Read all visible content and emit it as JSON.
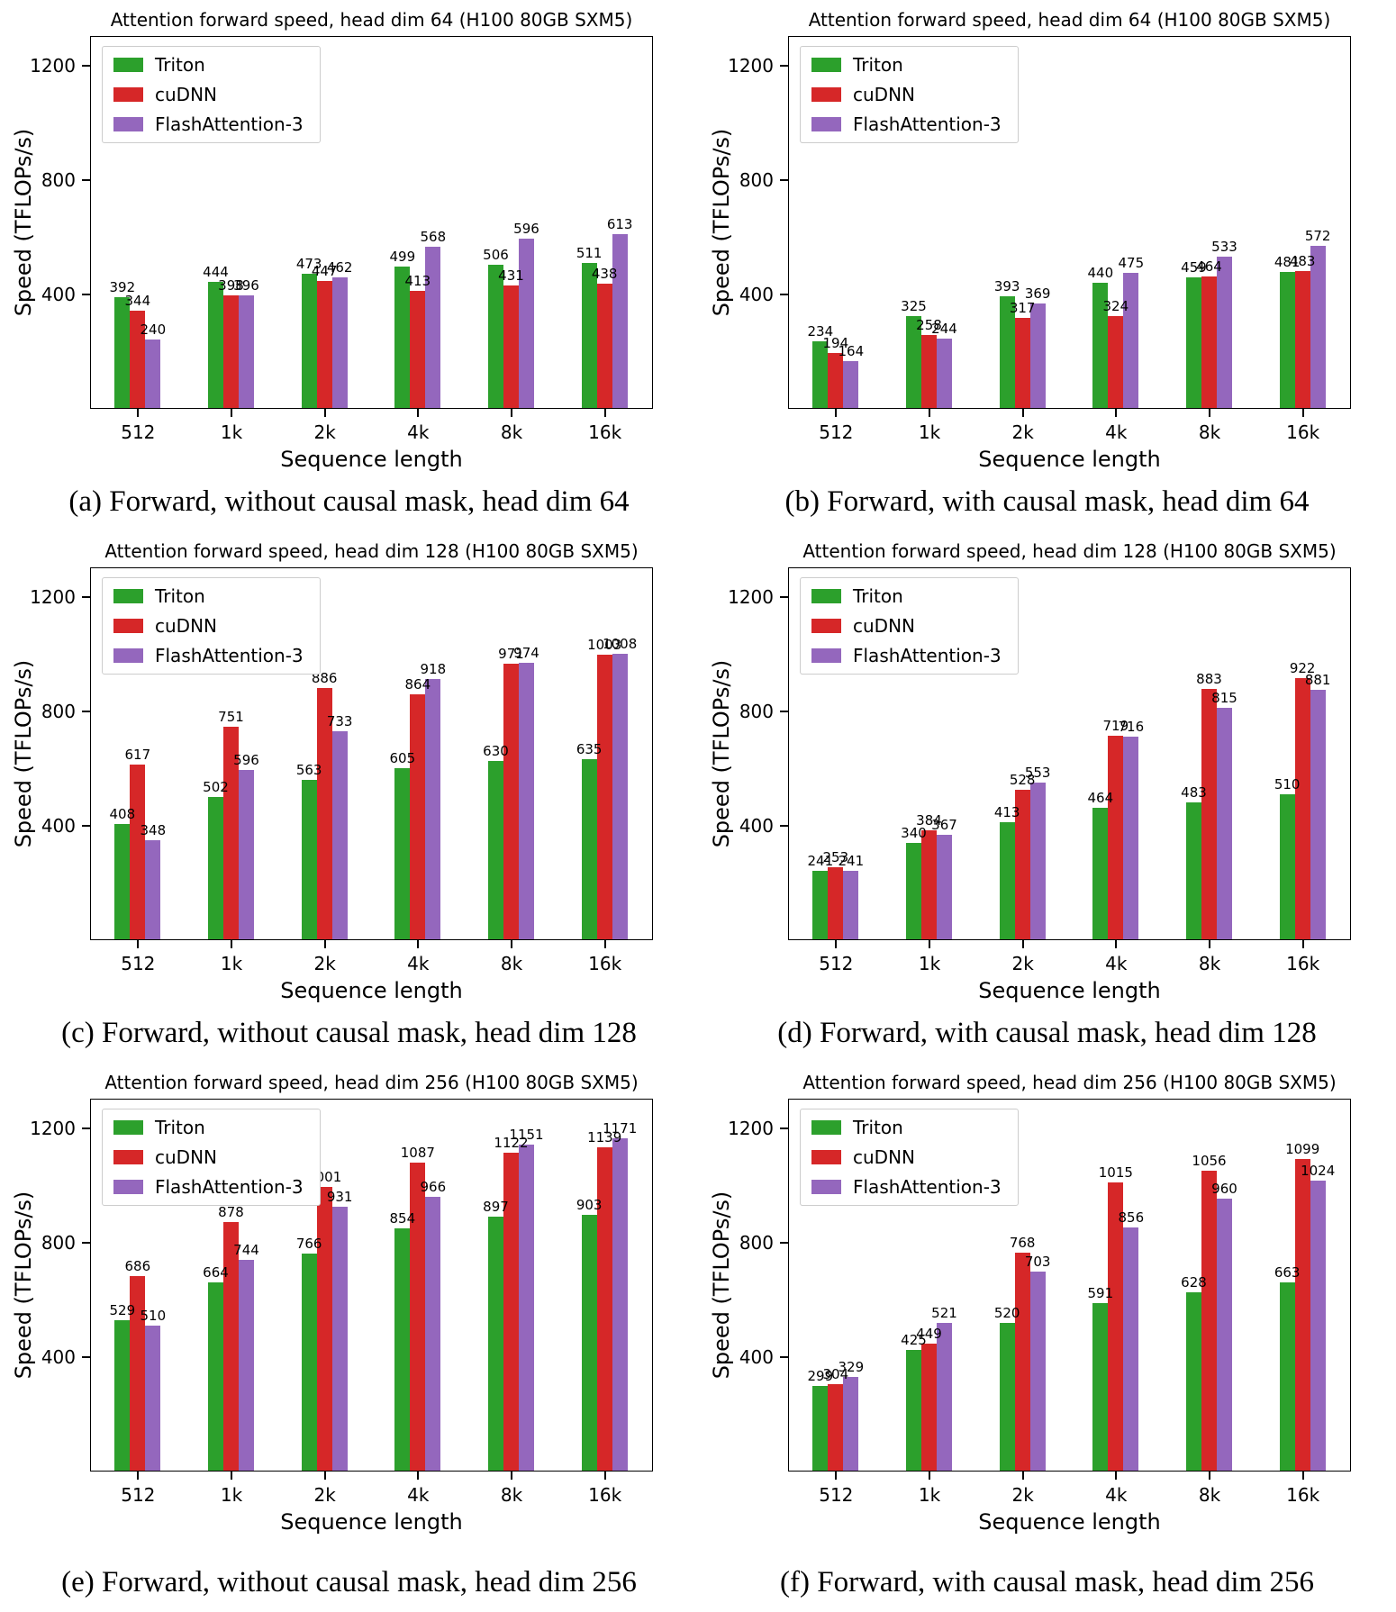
{
  "page": {
    "background": "#ffffff"
  },
  "axis": {
    "xlabel": "Sequence length",
    "ylabel": "Speed (TFLOPs/s)"
  },
  "colors": {
    "triton": "#2ca02c",
    "cudnn": "#d62728",
    "flashattention3": "#9467bd"
  },
  "chart_data": [
    {
      "id": "a",
      "type": "bar",
      "title": "Attention forward speed, head dim 64 (H100 80GB SXM5)",
      "caption": "(a) Forward, without causal mask, head dim 64",
      "xlabel": "Sequence length",
      "ylabel": "Speed (TFLOPs/s)",
      "categories": [
        "512",
        "1k",
        "2k",
        "4k",
        "8k",
        "16k"
      ],
      "yticks": [
        400,
        800,
        1200
      ],
      "ylim": [
        0,
        1305
      ],
      "grid": false,
      "legend_position": "upper left",
      "series": [
        {
          "name": "Triton",
          "color": "#2ca02c",
          "values": [
            392,
            444,
            473,
            499,
            506,
            511
          ]
        },
        {
          "name": "cuDNN",
          "color": "#d62728",
          "values": [
            344,
            398,
            447,
            413,
            431,
            438
          ]
        },
        {
          "name": "FlashAttention-3",
          "color": "#9467bd",
          "values": [
            240,
            396,
            462,
            568,
            596,
            613
          ]
        }
      ]
    },
    {
      "id": "b",
      "type": "bar",
      "title": "Attention forward speed, head dim 64 (H100 80GB SXM5)",
      "caption": "(b) Forward, with causal mask, head dim 64",
      "xlabel": "Sequence length",
      "ylabel": "Speed (TFLOPs/s)",
      "categories": [
        "512",
        "1k",
        "2k",
        "4k",
        "8k",
        "16k"
      ],
      "yticks": [
        400,
        800,
        1200
      ],
      "ylim": [
        0,
        1305
      ],
      "grid": false,
      "legend_position": "upper left",
      "series": [
        {
          "name": "Triton",
          "color": "#2ca02c",
          "values": [
            234,
            325,
            393,
            440,
            459,
            481
          ]
        },
        {
          "name": "cuDNN",
          "color": "#d62728",
          "values": [
            194,
            258,
            317,
            324,
            464,
            483
          ]
        },
        {
          "name": "FlashAttention-3",
          "color": "#9467bd",
          "values": [
            164,
            244,
            369,
            475,
            533,
            572
          ]
        }
      ]
    },
    {
      "id": "c",
      "type": "bar",
      "title": "Attention forward speed, head dim 128 (H100 80GB SXM5)",
      "caption": "(c) Forward, without causal mask, head dim 128",
      "xlabel": "Sequence length",
      "ylabel": "Speed (TFLOPs/s)",
      "categories": [
        "512",
        "1k",
        "2k",
        "4k",
        "8k",
        "16k"
      ],
      "yticks": [
        400,
        800,
        1200
      ],
      "ylim": [
        0,
        1305
      ],
      "grid": false,
      "legend_position": "upper left",
      "series": [
        {
          "name": "Triton",
          "color": "#2ca02c",
          "values": [
            408,
            502,
            563,
            605,
            630,
            635
          ]
        },
        {
          "name": "cuDNN",
          "color": "#d62728",
          "values": [
            617,
            751,
            886,
            864,
            971,
            1003
          ]
        },
        {
          "name": "FlashAttention-3",
          "color": "#9467bd",
          "values": [
            348,
            596,
            733,
            918,
            974,
            1008
          ]
        }
      ]
    },
    {
      "id": "d",
      "type": "bar",
      "title": "Attention forward speed, head dim 128 (H100 80GB SXM5)",
      "caption": "(d) Forward, with causal mask, head dim 128",
      "xlabel": "Sequence length",
      "ylabel": "Speed (TFLOPs/s)",
      "categories": [
        "512",
        "1k",
        "2k",
        "4k",
        "8k",
        "16k"
      ],
      "yticks": [
        400,
        800,
        1200
      ],
      "ylim": [
        0,
        1305
      ],
      "grid": false,
      "legend_position": "upper left",
      "series": [
        {
          "name": "Triton",
          "color": "#2ca02c",
          "values": [
            241,
            340,
            413,
            464,
            483,
            510
          ]
        },
        {
          "name": "cuDNN",
          "color": "#d62728",
          "values": [
            253,
            384,
            528,
            719,
            883,
            922
          ]
        },
        {
          "name": "FlashAttention-3",
          "color": "#9467bd",
          "values": [
            241,
            367,
            553,
            716,
            815,
            881
          ]
        }
      ]
    },
    {
      "id": "e",
      "type": "bar",
      "title": "Attention forward speed, head dim 256 (H100 80GB SXM5)",
      "caption": "(e) Forward, without causal mask, head dim 256",
      "xlabel": "Sequence length",
      "ylabel": "Speed (TFLOPs/s)",
      "categories": [
        "512",
        "1k",
        "2k",
        "4k",
        "8k",
        "16k"
      ],
      "yticks": [
        400,
        800,
        1200
      ],
      "ylim": [
        0,
        1305
      ],
      "grid": false,
      "legend_position": "upper left",
      "series": [
        {
          "name": "Triton",
          "color": "#2ca02c",
          "values": [
            529,
            664,
            766,
            854,
            897,
            903
          ]
        },
        {
          "name": "cuDNN",
          "color": "#d62728",
          "values": [
            686,
            878,
            1001,
            1087,
            1122,
            1139
          ]
        },
        {
          "name": "FlashAttention-3",
          "color": "#9467bd",
          "values": [
            510,
            744,
            931,
            966,
            1151,
            1171
          ]
        }
      ]
    },
    {
      "id": "f",
      "type": "bar",
      "title": "Attention forward speed, head dim 256 (H100 80GB SXM5)",
      "caption": "(f) Forward, with causal mask, head dim 256",
      "xlabel": "Sequence length",
      "ylabel": "Speed (TFLOPs/s)",
      "categories": [
        "512",
        "1k",
        "2k",
        "4k",
        "8k",
        "16k"
      ],
      "yticks": [
        400,
        800,
        1200
      ],
      "ylim": [
        0,
        1305
      ],
      "grid": false,
      "legend_position": "upper left",
      "series": [
        {
          "name": "Triton",
          "color": "#2ca02c",
          "values": [
            299,
            425,
            520,
            591,
            628,
            663
          ]
        },
        {
          "name": "cuDNN",
          "color": "#d62728",
          "values": [
            304,
            449,
            768,
            1015,
            1056,
            1099
          ]
        },
        {
          "name": "FlashAttention-3",
          "color": "#9467bd",
          "values": [
            329,
            521,
            703,
            856,
            960,
            1024
          ]
        }
      ]
    }
  ]
}
